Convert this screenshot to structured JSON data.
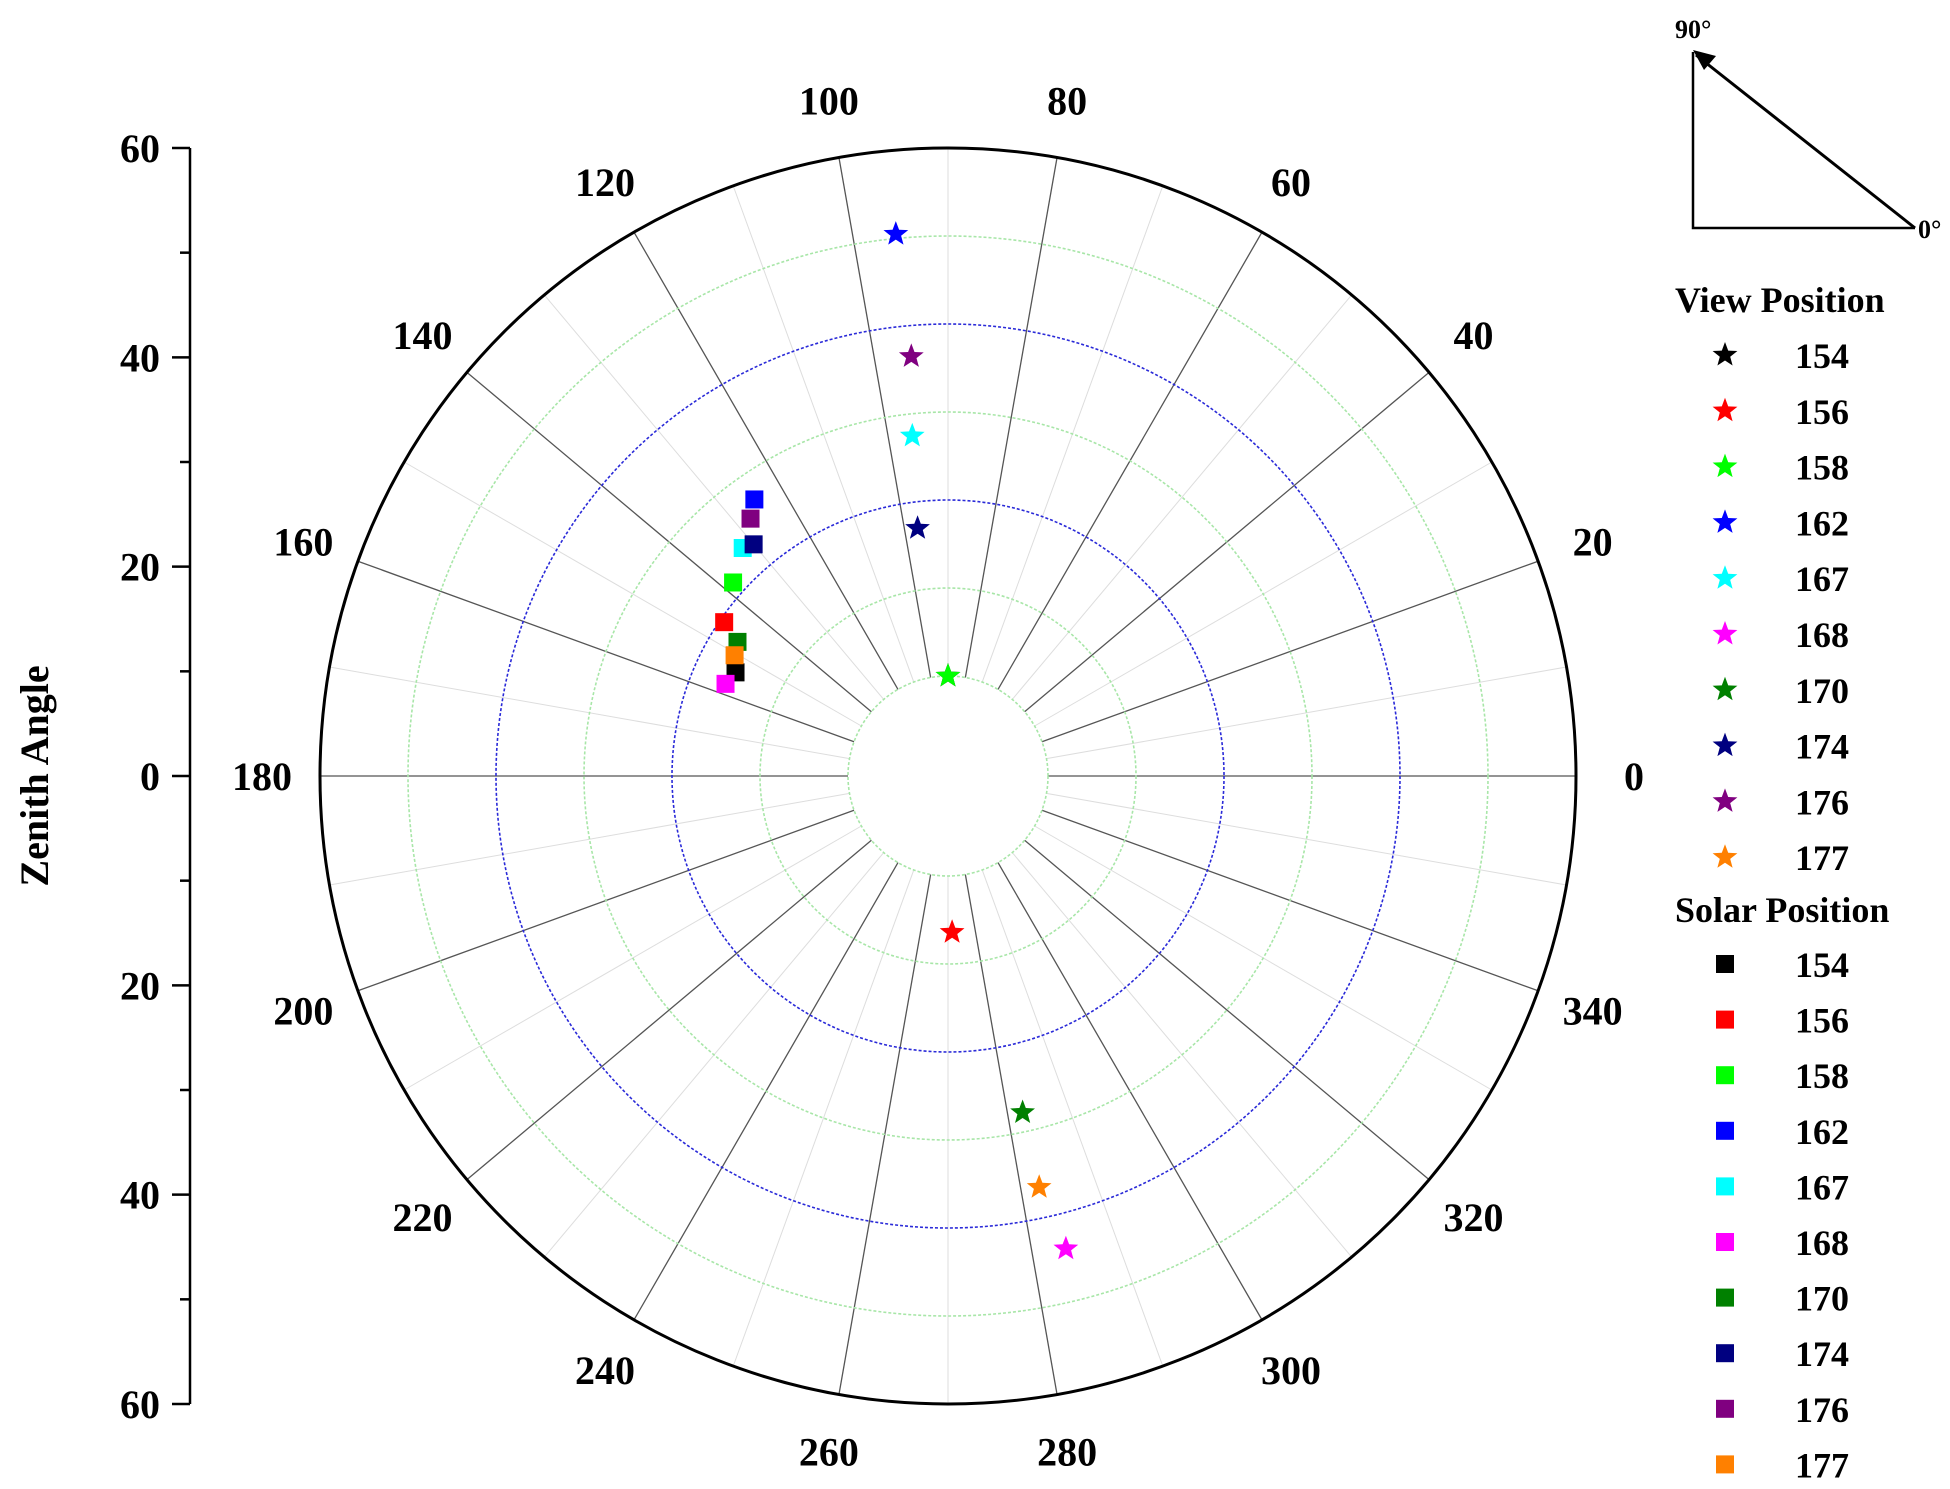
{
  "chart_data": {
    "type": "scatter",
    "projection": "polar",
    "ylabel": "Zenith Angle",
    "rlim": [
      0,
      60
    ],
    "radial_ticks": [
      "60",
      "40",
      "20",
      "0",
      "20",
      "40",
      "60"
    ],
    "angular_ticks": [
      {
        "angle": 0,
        "label": "0"
      },
      {
        "angle": 20,
        "label": "20"
      },
      {
        "angle": 40,
        "label": "40"
      },
      {
        "angle": 60,
        "label": "60"
      },
      {
        "angle": 80,
        "label": "80"
      },
      {
        "angle": 100,
        "label": "100"
      },
      {
        "angle": 120,
        "label": "120"
      },
      {
        "angle": 140,
        "label": "140"
      },
      {
        "angle": 160,
        "label": "160"
      },
      {
        "angle": 180,
        "label": "180"
      },
      {
        "angle": 200,
        "label": "200"
      },
      {
        "angle": 220,
        "label": "220"
      },
      {
        "angle": 240,
        "label": "240"
      },
      {
        "angle": 260,
        "label": "260"
      },
      {
        "angle": 280,
        "label": "280"
      },
      {
        "angle": 300,
        "label": "300"
      },
      {
        "angle": 320,
        "label": "320"
      },
      {
        "angle": 340,
        "label": "340"
      }
    ],
    "direction_inset": {
      "top_label": "90°",
      "right_label": "0°"
    },
    "legend": {
      "placement": "right",
      "groups": [
        "View Position",
        "Solar Position"
      ]
    },
    "view_position": [
      {
        "name": "154",
        "color": "#000000",
        "azimuth": 90,
        "zenith": 0
      },
      {
        "name": "156",
        "color": "#ff0000",
        "azimuth": 271.5,
        "zenith": 6.4
      },
      {
        "name": "158",
        "color": "#00ff00",
        "azimuth": 90,
        "zenith": 0
      },
      {
        "name": "162",
        "color": "#0000ff",
        "azimuth": 95.5,
        "zenith": 50.5
      },
      {
        "name": "167",
        "color": "#00ffff",
        "azimuth": 96,
        "zenith": 27.5
      },
      {
        "name": "168",
        "color": "#ff00ff",
        "azimuth": 284,
        "zenith": 44
      },
      {
        "name": "170",
        "color": "#008000",
        "azimuth": 282.5,
        "zenith": 27.8
      },
      {
        "name": "174",
        "color": "#000080",
        "azimuth": 97,
        "zenith": 17
      },
      {
        "name": "176",
        "color": "#800080",
        "azimuth": 95,
        "zenith": 36.5
      },
      {
        "name": "177",
        "color": "#ff8000",
        "azimuth": 282.5,
        "zenith": 36.5
      }
    ],
    "solar_position": [
      {
        "name": "154",
        "color": "#000000",
        "azimuth": 154,
        "zenith": 15.5
      },
      {
        "name": "156",
        "color": "#ff0000",
        "azimuth": 145.5,
        "zenith": 19.5
      },
      {
        "name": "158",
        "color": "#00ff00",
        "azimuth": 138,
        "zenith": 21.5
      },
      {
        "name": "162",
        "color": "#0000ff",
        "azimuth": 125,
        "zenith": 27
      },
      {
        "name": "167",
        "color": "#00ffff",
        "azimuth": 132,
        "zenith": 23.5
      },
      {
        "name": "168",
        "color": "#ff00ff",
        "azimuth": 157.5,
        "zenith": 16
      },
      {
        "name": "170",
        "color": "#008000",
        "azimuth": 147.5,
        "zenith": 17
      },
      {
        "name": "174",
        "color": "#000080",
        "azimuth": 130,
        "zenith": 23
      },
      {
        "name": "176",
        "color": "#800080",
        "azimuth": 127.5,
        "zenith": 25.5
      },
      {
        "name": "177",
        "color": "#ff8000",
        "azimuth": 150.5,
        "zenith": 16.5
      }
    ]
  }
}
